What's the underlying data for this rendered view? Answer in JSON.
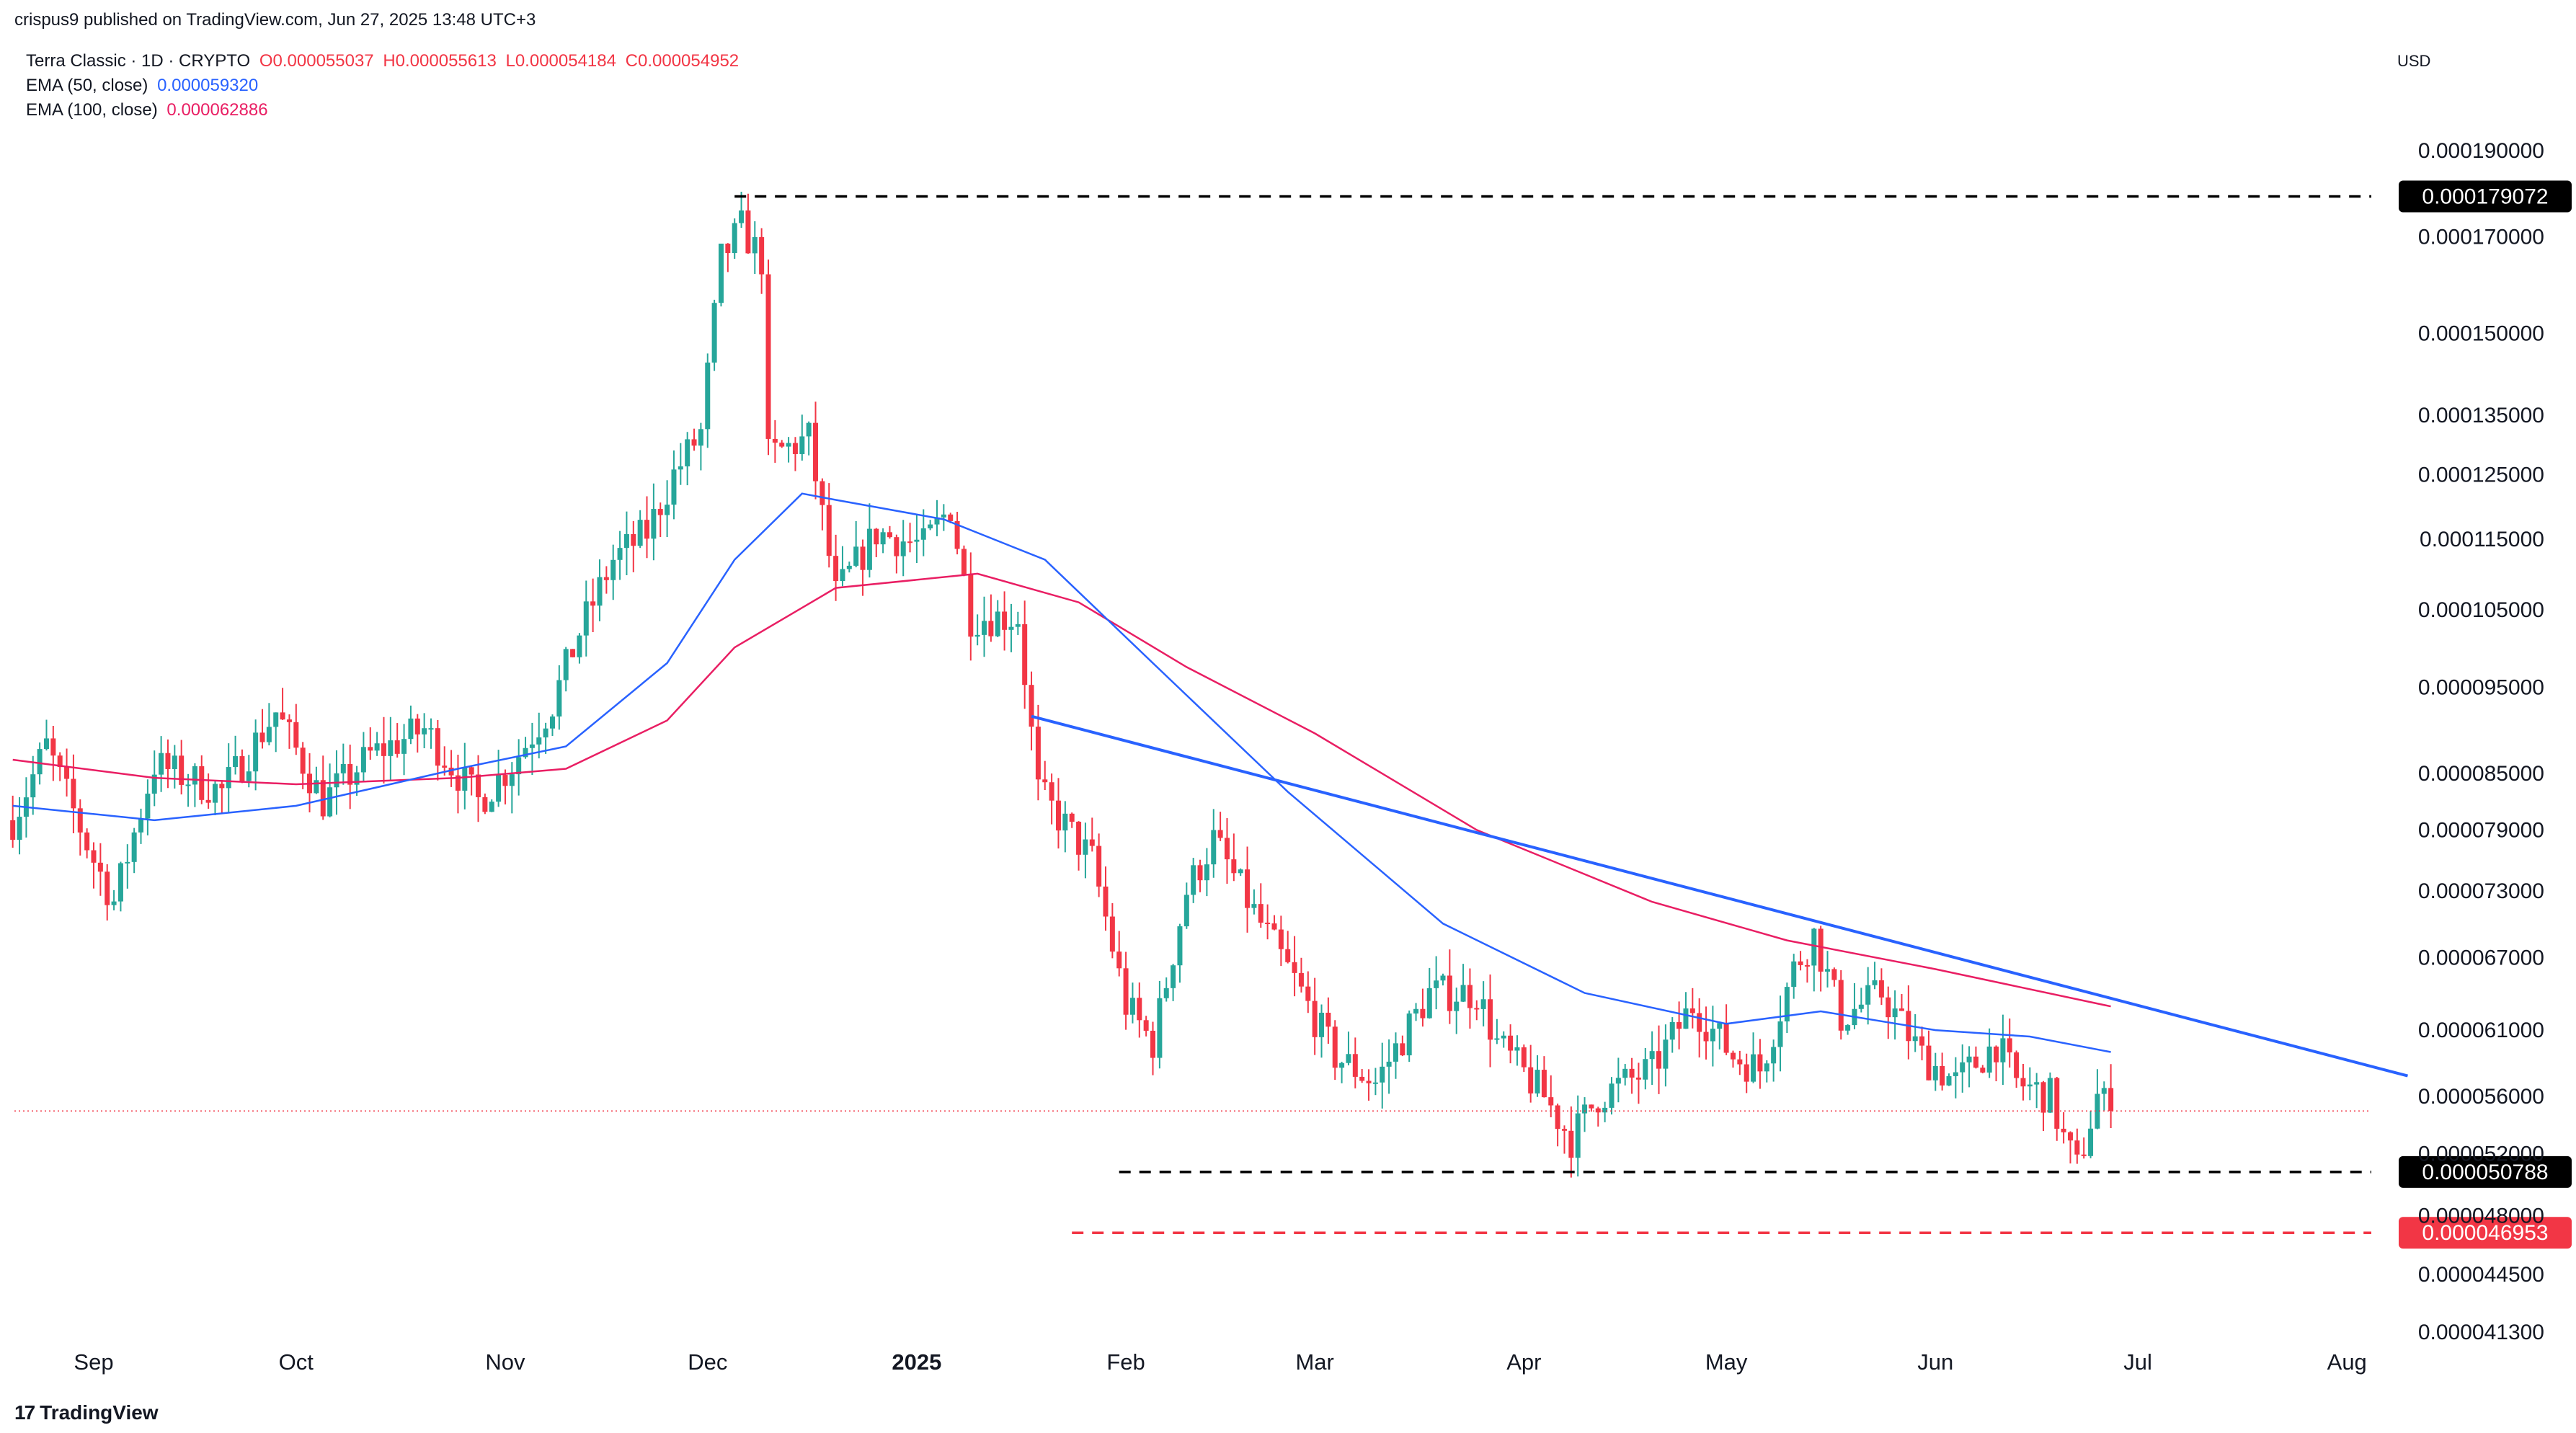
{
  "header": {
    "publisher_line": "crispus9 published on TradingView.com, Jun 27, 2025 13:48 UTC+3"
  },
  "legend": {
    "symbol": "Terra Classic · 1D · CRYPTO",
    "open": "O0.000055037",
    "high": "H0.000055613",
    "low": "L0.000054184",
    "close": "C0.000054952",
    "ema50_label": "EMA (50, close)",
    "ema50_value": "0.000059320",
    "ema100_label": "EMA (100, close)",
    "ema100_value": "0.000062886"
  },
  "currency": "USD",
  "footer": {
    "brand": "TradingView"
  },
  "colors": {
    "up": "#26a69a",
    "down": "#f23645",
    "ema50": "#2962ff",
    "ema100": "#e91e63",
    "trendline": "#2962ff",
    "last_price_line": "#f23645"
  },
  "chart_data": {
    "type": "candlestick",
    "y_scale": "log",
    "ylim": [
      4.13e-05,
      0.000197
    ],
    "x_tick_labels": [
      "Sep",
      "Oct",
      "Nov",
      "Dec",
      "2025",
      "Feb",
      "Mar",
      "Apr",
      "May",
      "Jun",
      "Jul",
      "Aug"
    ],
    "y_tick_labels": [
      "0.000190000",
      "0.000170000",
      "0.000150000",
      "0.000135000",
      "0.000125000",
      "0.000115000",
      "0.000105000",
      "0.000095000",
      "0.000085000",
      "0.000079000",
      "0.000073000",
      "0.000067000",
      "0.000061000",
      "0.000056000",
      "0.000052000",
      "0.000048000",
      "0.000044500",
      "0.000041300"
    ],
    "y_tick_values": [
      0.00019,
      0.00017,
      0.00015,
      0.000135,
      0.000125,
      0.000115,
      0.000105,
      9.5e-05,
      8.5e-05,
      7.9e-05,
      7.3e-05,
      6.7e-05,
      6.1e-05,
      5.6e-05,
      5.2e-05,
      4.8e-05,
      4.45e-05,
      4.13e-05
    ],
    "horizontal_levels": [
      {
        "label": "0.000179072",
        "value": 0.000179072,
        "style": "dashed",
        "color": "#000000"
      },
      {
        "label": "0.000050788",
        "value": 5.0788e-05,
        "style": "dashed",
        "color": "#000000"
      },
      {
        "label": "0.000046953",
        "value": 4.6953e-05,
        "style": "dashed",
        "color": "#f23645"
      }
    ],
    "last_price": 5.4952e-05,
    "trendline": {
      "start": [
        "2025-01-18",
        9.15e-05
      ],
      "end": [
        "2025-08-10",
        5.75e-05
      ]
    },
    "anchors": [
      [
        "2024-08-20",
        8e-05
      ],
      [
        "2024-08-25",
        8.8e-05
      ],
      [
        "2024-09-01",
        7.6e-05
      ],
      [
        "2024-09-04",
        7.2e-05
      ],
      [
        "2024-09-10",
        8.6e-05
      ],
      [
        "2024-09-20",
        8.3e-05
      ],
      [
        "2024-09-28",
        9.2e-05
      ],
      [
        "2024-10-05",
        8.2e-05
      ],
      [
        "2024-10-12",
        8.7e-05
      ],
      [
        "2024-10-20",
        9e-05
      ],
      [
        "2024-10-28",
        8.2e-05
      ],
      [
        "2024-11-02",
        8.6e-05
      ],
      [
        "2024-11-08",
        9.3e-05
      ],
      [
        "2024-11-12",
        0.000102
      ],
      [
        "2024-11-17",
        0.000112
      ],
      [
        "2024-11-22",
        0.000116
      ],
      [
        "2024-11-26",
        0.000125
      ],
      [
        "2024-11-30",
        0.000132
      ],
      [
        "2024-12-03",
        0.000165
      ],
      [
        "2024-12-06",
        0.000172
      ],
      [
        "2024-12-09",
        0.000165
      ],
      [
        "2024-12-10",
        0.000128
      ],
      [
        "2024-12-16",
        0.000131
      ],
      [
        "2024-12-20",
        0.000107
      ],
      [
        "2024-12-26",
        0.000116
      ],
      [
        "2025-01-02",
        0.000114
      ],
      [
        "2025-01-06",
        0.00012
      ],
      [
        "2025-01-09",
        0.000104
      ],
      [
        "2025-01-16",
        0.000104
      ],
      [
        "2025-01-19",
        8.3e-05
      ],
      [
        "2025-01-27",
        7.6e-05
      ],
      [
        "2025-02-01",
        6.3e-05
      ],
      [
        "2025-02-05",
        6e-05
      ],
      [
        "2025-02-10",
        7.3e-05
      ],
      [
        "2025-02-14",
        7.8e-05
      ],
      [
        "2025-02-20",
        7.1e-05
      ],
      [
        "2025-02-26",
        6.5e-05
      ],
      [
        "2025-03-04",
        5.9e-05
      ],
      [
        "2025-03-10",
        5.7e-05
      ],
      [
        "2025-03-18",
        6.4e-05
      ],
      [
        "2025-03-25",
        6.4e-05
      ],
      [
        "2025-03-28",
        6e-05
      ],
      [
        "2025-04-04",
        5.6e-05
      ],
      [
        "2025-04-08",
        5.3e-05
      ],
      [
        "2025-04-12",
        5.6e-05
      ],
      [
        "2025-04-20",
        5.8e-05
      ],
      [
        "2025-04-26",
        6.3e-05
      ],
      [
        "2025-05-02",
        5.9e-05
      ],
      [
        "2025-05-06",
        5.8e-05
      ],
      [
        "2025-05-11",
        6.6e-05
      ],
      [
        "2025-05-14",
        6.9e-05
      ],
      [
        "2025-05-18",
        6.2e-05
      ],
      [
        "2025-05-24",
        6.4e-05
      ],
      [
        "2025-05-30",
        5.9e-05
      ],
      [
        "2025-06-04",
        5.7e-05
      ],
      [
        "2025-06-10",
        6e-05
      ],
      [
        "2025-06-13",
        5.7e-05
      ],
      [
        "2025-06-18",
        5.6e-05
      ],
      [
        "2025-06-20",
        5.3e-05
      ],
      [
        "2025-06-22",
        5.1e-05
      ],
      [
        "2025-06-25",
        5.6e-05
      ],
      [
        "2025-06-27",
        5.4952e-05
      ]
    ],
    "ema50_points": [
      [
        "2024-08-20",
        8.15e-05
      ],
      [
        "2024-09-10",
        8e-05
      ],
      [
        "2024-10-01",
        8.15e-05
      ],
      [
        "2024-10-25",
        8.55e-05
      ],
      [
        "2024-11-10",
        8.8e-05
      ],
      [
        "2024-11-25",
        9.8e-05
      ],
      [
        "2024-12-05",
        0.000112
      ],
      [
        "2024-12-15",
        0.000122
      ],
      [
        "2024-12-20",
        0.000121
      ],
      [
        "2025-01-05",
        0.000118
      ],
      [
        "2025-01-20",
        0.000112
      ],
      [
        "2025-02-05",
        9.8e-05
      ],
      [
        "2025-02-25",
        8.3e-05
      ],
      [
        "2025-03-20",
        7e-05
      ],
      [
        "2025-04-10",
        6.4e-05
      ],
      [
        "2025-05-01",
        6.15e-05
      ],
      [
        "2025-05-15",
        6.25e-05
      ],
      [
        "2025-06-01",
        6.1e-05
      ],
      [
        "2025-06-15",
        6.05e-05
      ],
      [
        "2025-06-27",
        5.93e-05
      ]
    ],
    "ema100_points": [
      [
        "2024-08-20",
        8.65e-05
      ],
      [
        "2024-09-10",
        8.45e-05
      ],
      [
        "2024-10-01",
        8.38e-05
      ],
      [
        "2024-10-25",
        8.45e-05
      ],
      [
        "2024-11-10",
        8.55e-05
      ],
      [
        "2024-11-25",
        9.1e-05
      ],
      [
        "2024-12-05",
        0.0001
      ],
      [
        "2024-12-20",
        0.000108
      ],
      [
        "2025-01-10",
        0.00011
      ],
      [
        "2025-01-25",
        0.000106
      ],
      [
        "2025-02-10",
        9.75e-05
      ],
      [
        "2025-03-01",
        8.95e-05
      ],
      [
        "2025-03-25",
        7.9e-05
      ],
      [
        "2025-04-20",
        7.2e-05
      ],
      [
        "2025-05-10",
        6.85e-05
      ],
      [
        "2025-06-01",
        6.6e-05
      ],
      [
        "2025-06-27",
        6.29e-05
      ]
    ]
  }
}
